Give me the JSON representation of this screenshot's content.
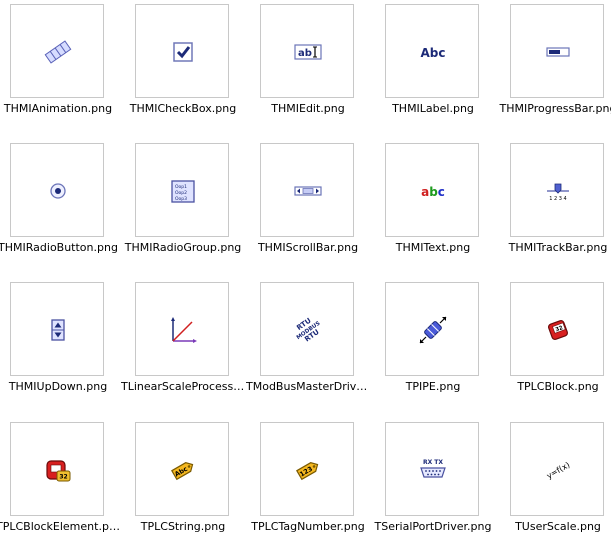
{
  "files": [
    {
      "name": "THMIAnimation.png",
      "icon": "animation-icon"
    },
    {
      "name": "THMICheckBox.png",
      "icon": "checkbox-icon"
    },
    {
      "name": "THMIEdit.png",
      "icon": "edit-icon"
    },
    {
      "name": "THMILabel.png",
      "icon": "label-icon"
    },
    {
      "name": "THMIProgressBar.png",
      "icon": "progressbar-icon"
    },
    {
      "name": "THMIRadioButton.png",
      "icon": "radiobutton-icon"
    },
    {
      "name": "THMIRadioGroup.png",
      "icon": "radiogroup-icon"
    },
    {
      "name": "THMIScrollBar.png",
      "icon": "scrollbar-icon"
    },
    {
      "name": "THMIText.png",
      "icon": "text-icon"
    },
    {
      "name": "THMITrackBar.png",
      "icon": "trackbar-icon"
    },
    {
      "name": "THMIUpDown.png",
      "icon": "updown-icon"
    },
    {
      "name": "TLinearScaleProcesso...",
      "icon": "linear-scale-icon"
    },
    {
      "name": "TModBusMasterDriver....",
      "icon": "modbus-icon"
    },
    {
      "name": "TPIPE.png",
      "icon": "pipe-icon"
    },
    {
      "name": "TPLCBlock.png",
      "icon": "plc-block-icon"
    },
    {
      "name": "TPLCBlockElement.png",
      "icon": "plc-block-element-icon"
    },
    {
      "name": "TPLCString.png",
      "icon": "plc-string-icon"
    },
    {
      "name": "TPLCTagNumber.png",
      "icon": "plc-tag-number-icon"
    },
    {
      "name": "TSerialPortDriver.png",
      "icon": "serial-port-icon"
    },
    {
      "name": "TUserScale.png",
      "icon": "user-scale-icon"
    }
  ],
  "icon_text": {
    "edit": "ab",
    "label": "Abc",
    "text_a": "a",
    "text_b": "b",
    "text_c": "c",
    "radiogroup_1": "Oop1",
    "radiogroup_2": "Oop2",
    "radiogroup_3": "Oop3",
    "trackbar_ticks": "1 2 3 4",
    "modbus_1": "RTU",
    "modbus_2": "MODBUS",
    "modbus_3": "RTU",
    "plc_block": "32",
    "plc_block_element": "32",
    "plc_string": "Abc",
    "plc_tag_number": "123",
    "serial_port": "RX TX",
    "user_scale": "y=f(x)"
  }
}
